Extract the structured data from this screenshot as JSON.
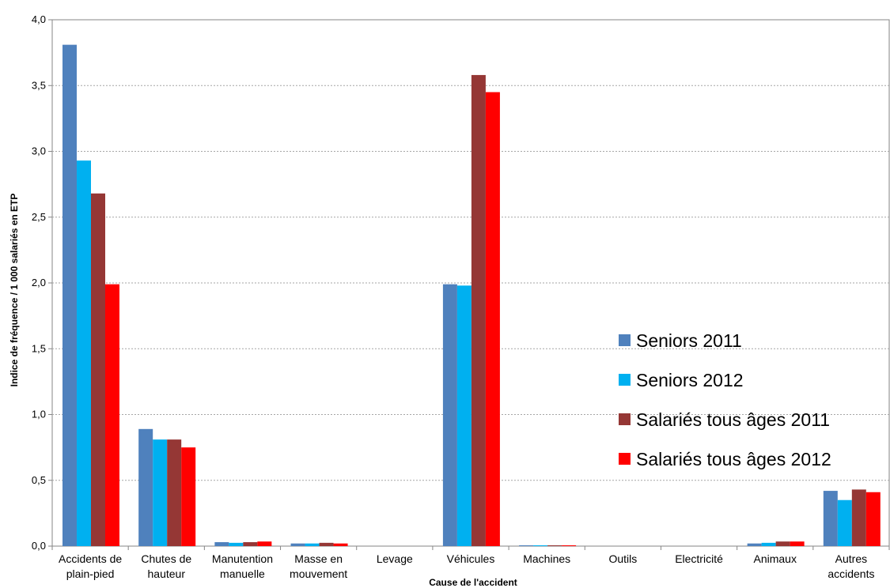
{
  "chart_data": {
    "type": "bar",
    "title": "",
    "xlabel": "Cause de l'accident",
    "ylabel": "Indice de fréquence / 1 000 salariés en ETP",
    "ylim": [
      0,
      4
    ],
    "yticks": [
      "0,0",
      "0,5",
      "1,0",
      "1,5",
      "2,0",
      "2,5",
      "3,0",
      "3,5",
      "4,0"
    ],
    "grid": true,
    "legend_position": "right",
    "categories": [
      [
        "Accidents de",
        "plain-pied"
      ],
      [
        "Chutes de",
        "hauteur"
      ],
      [
        "Manutention",
        "manuelle"
      ],
      [
        "Masse en",
        "mouvement"
      ],
      [
        "Levage"
      ],
      [
        "Véhicules"
      ],
      [
        "Machines"
      ],
      [
        "Outils"
      ],
      [
        "Electricité"
      ],
      [
        "Animaux"
      ],
      [
        "Autres",
        "accidents"
      ]
    ],
    "series": [
      {
        "name": "Seniors 2011",
        "color": "#4f81bd",
        "values": [
          3.81,
          0.89,
          0.03,
          0.02,
          0.0,
          1.99,
          0.003,
          0.0,
          0.0,
          0.02,
          0.42
        ]
      },
      {
        "name": "Seniors 2012",
        "color": "#00b0f0",
        "values": [
          2.93,
          0.81,
          0.025,
          0.02,
          0.0,
          1.98,
          0.002,
          0.0,
          0.0,
          0.025,
          0.35
        ]
      },
      {
        "name": "Salariés tous âges 2011",
        "color": "#953735",
        "values": [
          2.68,
          0.81,
          0.03,
          0.025,
          0.0,
          3.58,
          0.004,
          0.0,
          0.0,
          0.035,
          0.43
        ]
      },
      {
        "name": "Salariés tous âges 2012",
        "color": "#ff0000",
        "values": [
          1.99,
          0.75,
          0.035,
          0.02,
          0.0,
          3.45,
          0.003,
          0.0,
          0.0,
          0.035,
          0.41
        ]
      }
    ]
  }
}
